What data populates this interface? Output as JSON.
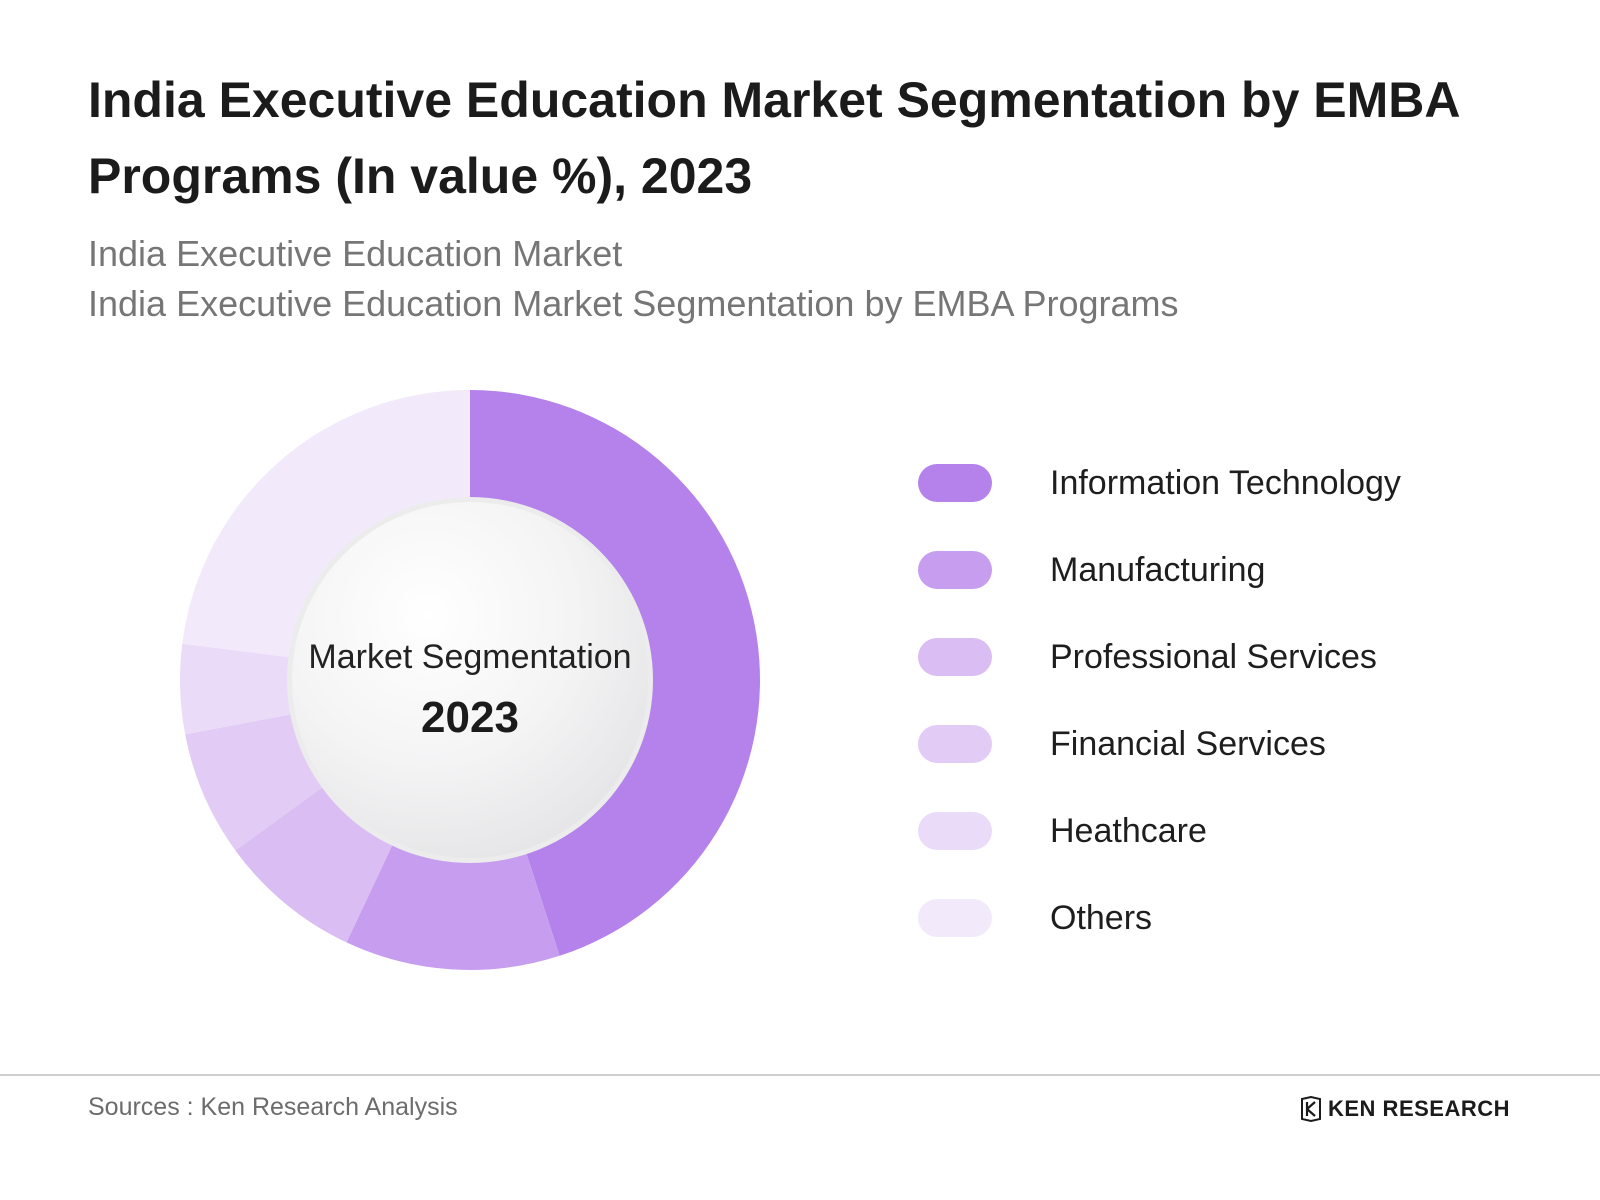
{
  "title": "India Executive Education Market Segmentation by EMBA Programs (In value %), 2023",
  "subtitle_line1": "India Executive Education Market",
  "subtitle_line2": "India Executive Education Market Segmentation by EMBA Programs",
  "center": {
    "label": "Market Segmentation",
    "year": "2023"
  },
  "chart_data": {
    "type": "pie",
    "donut": true,
    "categories": [
      "Information Technology",
      "Manufacturing",
      "Professional Services",
      "Financial Services",
      "Heathcare",
      "Others"
    ],
    "values": [
      45,
      12,
      8,
      7,
      5,
      23
    ],
    "colors": [
      "#b482ea",
      "#c79eef",
      "#dabdf3",
      "#e2ccf6",
      "#eadcf8",
      "#f2eafb"
    ],
    "legend_position": "right"
  },
  "footer": {
    "sources": "Sources : Ken Research Analysis",
    "brand": "KEN RESEARCH"
  }
}
